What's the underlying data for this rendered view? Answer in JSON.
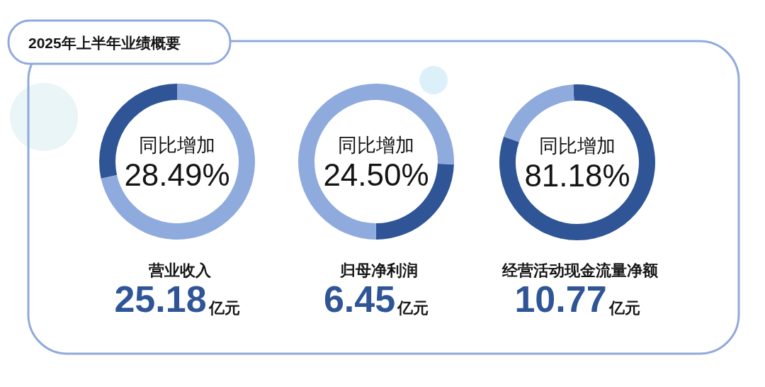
{
  "chart_data": [
    {
      "type": "other",
      "title": "2025年上半年业绩概要"
    },
    {
      "type": "donut",
      "title": "营业收入",
      "categories": [
        null,
        null
      ],
      "values": [
        28.49,
        71.51
      ],
      "colors": [
        "#2f5597",
        "#8faadc"
      ],
      "annotations": [
        "同比增加",
        "28.49%",
        "25.18",
        "亿元"
      ]
    },
    {
      "type": "donut",
      "title": "归母净利润",
      "categories": [
        null,
        null
      ],
      "values": [
        24.5,
        75.5
      ],
      "colors": [
        "#2f5597",
        "#8faadc"
      ],
      "annotations": [
        "同比增加",
        "24.50%",
        "6.45",
        "亿元"
      ]
    },
    {
      "type": "donut",
      "title": "经营活动现金流量净额",
      "categories": [
        null,
        null
      ],
      "values": [
        81.18,
        18.82
      ],
      "colors": [
        "#2f5597",
        "#8faadc"
      ],
      "annotations": [
        "同比增加",
        "81.18%",
        "10.77",
        "亿元"
      ]
    }
  ]
}
